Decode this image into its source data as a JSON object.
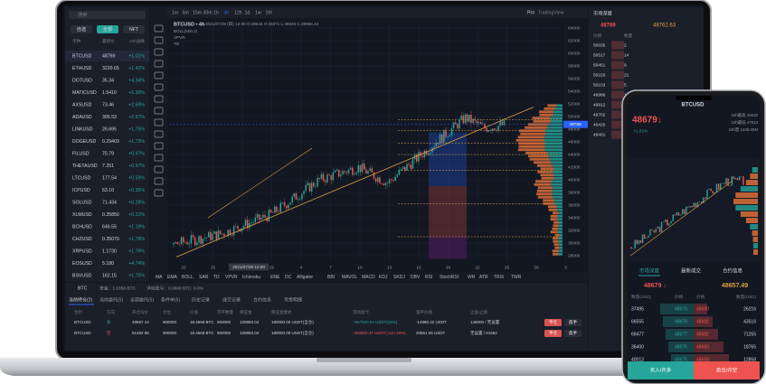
{
  "watchlist": {
    "search": "搜索",
    "tabs": [
      "自选",
      "全部",
      "NFT"
    ],
    "header": [
      "币种",
      "最新价",
      "24h涨跌"
    ],
    "rows": [
      [
        "BTCUSD",
        "48769",
        "+1.01%"
      ],
      [
        "ETHUSD",
        "3220.65",
        "+1.42%"
      ],
      [
        "DOTUSD",
        "35.34",
        "+4.34%"
      ],
      [
        "MATICUSD",
        "1.5410",
        "+5.39%"
      ],
      [
        "AXSUSD",
        "73.46",
        "+2.59%"
      ],
      [
        "ADAUSD",
        "305.53",
        "+2.57%"
      ],
      [
        "LINKUSD",
        "26.695",
        "+1.75%"
      ],
      [
        "DOGEUSD",
        "0.29403",
        "+1.73%"
      ],
      [
        "FILUSD",
        "75.79",
        "+0.97%"
      ],
      [
        "THETAUSD",
        "7.251",
        "+0.97%"
      ],
      [
        "LTCUSD",
        "177.54",
        "+0.59%"
      ],
      [
        "ICPUSD",
        "63.10",
        "+0.35%"
      ],
      [
        "SOLUSD",
        "71.434",
        "+0.28%"
      ],
      [
        "XLMUSD",
        "0.35850",
        "+0.21%"
      ],
      [
        "BCHUSD",
        "646.55",
        "+1.19%"
      ],
      [
        "CHZUSD",
        "0.35079",
        "+1.78%"
      ],
      [
        "XRPUSD",
        "1.1730",
        "+1.79%"
      ],
      [
        "EOSUSD",
        "5.180",
        "+4.74%"
      ],
      [
        "BSVUSD",
        "162.15",
        "+1.75%"
      ]
    ]
  },
  "chart": {
    "timeframes": [
      "1m",
      "5m",
      "15m",
      "30m",
      "1h",
      "4h",
      "12h",
      "1d",
      "1w",
      "1M"
    ],
    "mode": [
      "Pro",
      "TradingView"
    ],
    "title": "BTCUSD • 4h",
    "ohlc": "2021/07/29 (四) 12:00 O:39644 H:40271 L:39536 C:39966.43",
    "indicators": [
      "BOLL(400,2)",
      "VPVR",
      "TD"
    ],
    "ylim": [
      65000,
      27000
    ],
    "yticks": [
      64000,
      62000,
      60000,
      58000,
      56000,
      54000,
      52000,
      50000,
      48000,
      46000,
      44000,
      42000,
      40000,
      38000,
      36000,
      34000,
      32000,
      30000,
      28000
    ],
    "xticks": [
      "22",
      "25",
      "28",
      "31",
      "4",
      "7",
      "10",
      "13",
      "16",
      "19",
      "22",
      "25",
      "28",
      "3"
    ],
    "crosshair_time": "2021/07/29 12:00",
    "last_price": 48769,
    "indicator_bar": [
      "MA",
      "EMA",
      "BOLL",
      "SAR",
      "TD",
      "VPVR",
      "Ichimoku",
      "ENE",
      "DC",
      "Alligator",
      "BBI",
      "MAVOL",
      "MACD",
      "KDJ",
      "SKDJ",
      "DBV",
      "RSI",
      "StochRSI",
      "WR",
      "ATR",
      "TRIX",
      "TWR"
    ]
  },
  "positions": {
    "symbol": "BTC",
    "summary": [
      "资金：1.0358 BTC",
      "浮动盈亏：0.0000 BTC",
      "0.0%"
    ],
    "tabs": [
      "当前持仓(2)",
      "当前委托(5)",
      "全部委托(5)",
      "条件单(5)",
      "历史记录",
      "成交记录",
      "合约信息",
      "资金明细"
    ],
    "columns": [
      "合约",
      "方向",
      "开仓均价",
      "仓位",
      "价值",
      "可平数量",
      "保证金",
      "保证金模式",
      "浮动盈亏",
      "强平价格",
      "止盈/止损"
    ],
    "rows": [
      [
        "BTCUSD",
        "多",
        "49597.14",
        "900000",
        "18.4568 BTC",
        "900000",
        "100883.04",
        "180000.00 USDT(全仓)",
        "+957500.84 USDT(25%)",
        "-14880.22 USDT",
        "145000 / 无设置"
      ],
      [
        "BTCUSD",
        "空",
        "51482.98",
        "900000",
        "18.4568 BTC",
        "900000",
        "100883.04",
        "180000.00 USDT(全仓)",
        "-469602.47 USDT(-210.28%)",
        "20651.05 USDT",
        "无设置 / 51552"
      ]
    ],
    "actions": [
      "平仓",
      "反手"
    ]
  },
  "orderbook": {
    "title": "市场深度",
    "price": "48789",
    "mark": "48762.63",
    "header": [
      "价格",
      "数量"
    ],
    "rows": [
      [
        "50635",
        "2"
      ],
      [
        "50517",
        "14"
      ],
      [
        "50451",
        "9"
      ],
      [
        "50226",
        "21"
      ],
      [
        "50103",
        "5"
      ],
      [
        "49986",
        "17"
      ],
      [
        "49812",
        "8"
      ],
      [
        "49702",
        "30"
      ],
      [
        "49425",
        "12"
      ],
      [
        "49401",
        "6"
      ]
    ]
  },
  "phone": {
    "symbol": "BTCUSD",
    "price": "48679↓",
    "change": "+1.01%",
    "stats": [
      "24h最高 49232",
      "24h最低 47813",
      "24h量 1235.60M"
    ],
    "tabs": [
      "市场深度",
      "最新成交",
      "合约信息"
    ],
    "bid": "48679 ↓",
    "ask": "48657.49",
    "header": [
      "数量(USD)",
      "价格",
      "价格",
      "数量(USD)"
    ],
    "rows": [
      [
        "37495",
        "48679",
        "48680",
        "26216"
      ],
      [
        "66555",
        "48678",
        "48681",
        "43516"
      ],
      [
        "69477",
        "48677",
        "48682",
        "71255"
      ],
      [
        "36400",
        "48676",
        "48683",
        "18765"
      ],
      [
        "40013",
        "48675",
        "48684",
        "12858"
      ]
    ],
    "buttons": [
      "买入/开多",
      "卖出/开空"
    ]
  }
}
